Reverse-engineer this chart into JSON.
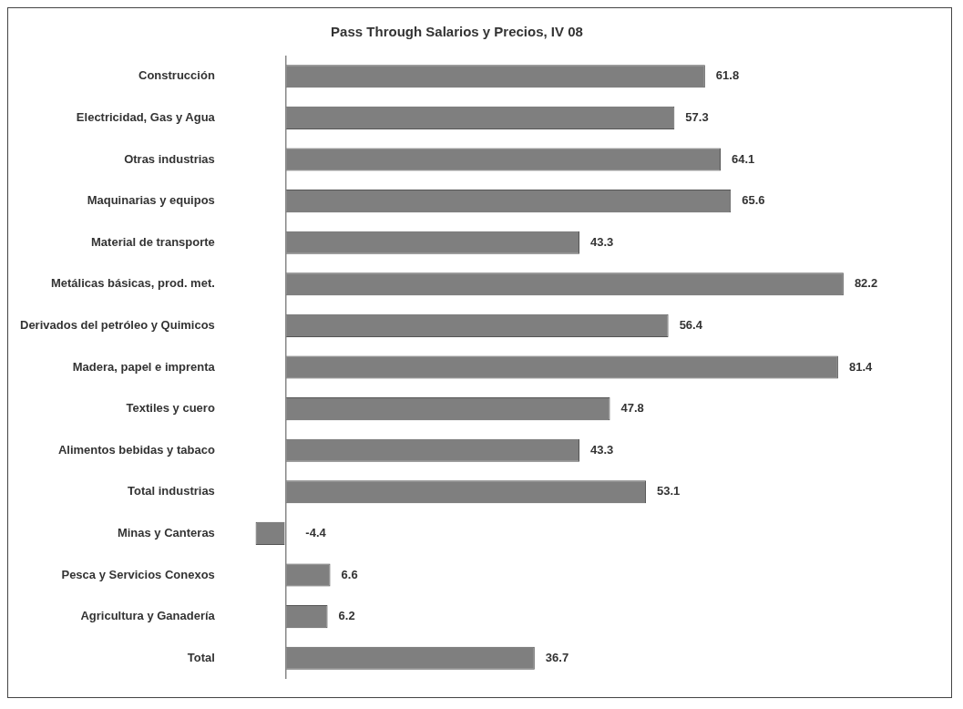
{
  "chart_data": {
    "type": "bar",
    "orientation": "horizontal",
    "title": "Pass Through Salarios y Precios, IV 08",
    "categories": [
      "Construcción",
      "Electricidad, Gas y Agua",
      "Otras industrias",
      "Maquinarias y equipos",
      "Material de transporte",
      "Metálicas básicas, prod. met.",
      "Derivados del petróleo y Quimicos",
      "Madera, papel e imprenta",
      "Textiles y cuero",
      "Alimentos bebidas y tabaco",
      "Total industrias",
      "Minas y Canteras",
      "Pesca y Servicios Conexos",
      "Agricultura y Ganadería",
      "Total"
    ],
    "values": [
      61.8,
      57.3,
      64.1,
      65.6,
      43.3,
      82.2,
      56.4,
      81.4,
      47.8,
      43.3,
      53.1,
      -4.4,
      6.6,
      6.2,
      36.7
    ],
    "color": "#7f7f7f",
    "data_labels": true,
    "grid": false,
    "legend": false,
    "tick_labels": "y"
  }
}
